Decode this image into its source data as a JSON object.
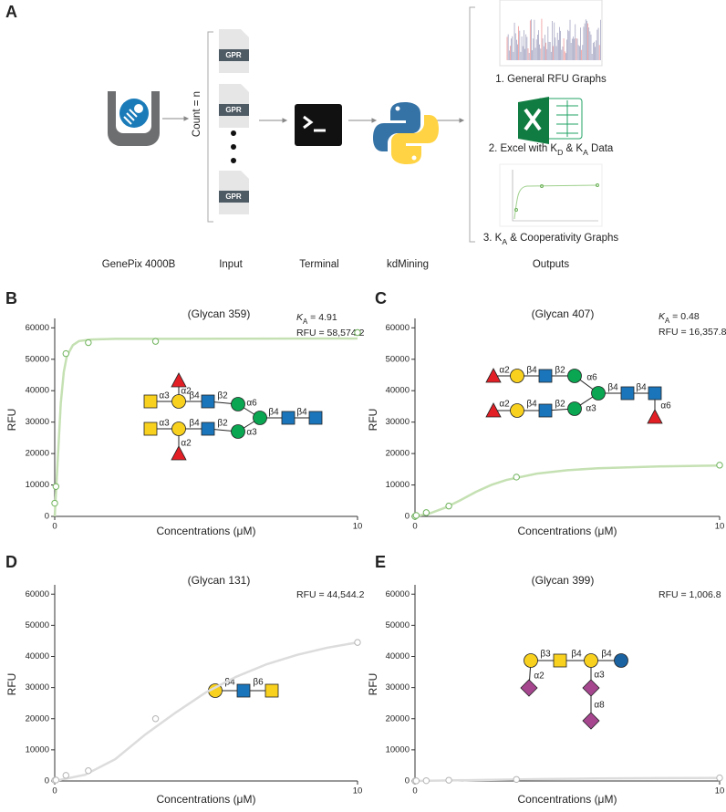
{
  "figure": {
    "panel_label": "A",
    "steps": [
      "GenePix 4000B",
      "Input",
      "Terminal",
      "kdMining",
      "Outputs"
    ],
    "count_label": "Count = n",
    "file_tags": [
      "GPR",
      "GPR",
      "GPR"
    ],
    "outputs": [
      [
        "1. General RFU Graphs"
      ],
      [
        "2. Excel with K",
        "D",
        " & K",
        "A",
        " Data"
      ],
      [
        "3. K",
        "A",
        " & Cooperativity Graphs"
      ]
    ]
  },
  "chart_data": [
    {
      "type": "scatter",
      "panel_label": "B",
      "title": "(Glycan 359)",
      "xlabel": "Concentrations (μM)",
      "ylabel": "RFU",
      "annotations": [
        [
          "K",
          "A",
          " = 4.91"
        ],
        [
          "RFU = 58,574.2"
        ]
      ],
      "xlim": [
        0,
        10
      ],
      "xticks": [
        0,
        10
      ],
      "ylim": [
        0,
        63000
      ],
      "yticks": [
        0,
        10000,
        20000,
        30000,
        40000,
        50000,
        60000
      ],
      "color": "#6fb35c",
      "fit_color": "#c5e1b3",
      "points": {
        "x": [
          0,
          0.04,
          0.37,
          1.11,
          3.33,
          10
        ],
        "values": [
          4200,
          9500,
          51800,
          55300,
          55700,
          58500
        ]
      },
      "fit": {
        "x": [
          0,
          0.05,
          0.1,
          0.15,
          0.2,
          0.3,
          0.4,
          0.6,
          0.8,
          1.2,
          2,
          4,
          10
        ],
        "values": [
          0,
          9000,
          18000,
          27000,
          36000,
          46000,
          51000,
          54500,
          55800,
          56300,
          56500,
          56500,
          56600
        ]
      },
      "glycan_labels": [
        "α3",
        "α2",
        "β4",
        "β2",
        "α6",
        "α3",
        "α2",
        "β4",
        "β2",
        "α3",
        "β4",
        "β4"
      ]
    },
    {
      "type": "scatter",
      "panel_label": "C",
      "title": "(Glycan 407)",
      "xlabel": "Concentrations (μM)",
      "ylabel": "RFU",
      "annotations": [
        [
          "K",
          "A",
          " = 0.48"
        ],
        [
          "RFU = 16,357.8"
        ]
      ],
      "xlim": [
        0,
        10
      ],
      "xticks": [
        0,
        10
      ],
      "ylim": [
        0,
        63000
      ],
      "yticks": [
        0,
        10000,
        20000,
        30000,
        40000,
        50000,
        60000
      ],
      "color": "#6fb35c",
      "fit_color": "#c5e1b3",
      "points": {
        "x": [
          0,
          0.04,
          0.37,
          1.11,
          3.33,
          10
        ],
        "values": [
          0,
          300,
          1200,
          3300,
          12500,
          16300
        ]
      },
      "fit": {
        "x": [
          0,
          0.5,
          1,
          1.5,
          2,
          2.5,
          3,
          4,
          5,
          6,
          8,
          10
        ],
        "values": [
          0,
          1000,
          2800,
          5200,
          7800,
          10000,
          11600,
          13600,
          14700,
          15300,
          15900,
          16200
        ]
      },
      "glycan_labels": [
        "α2",
        "β4",
        "β2",
        "α6",
        "α2",
        "β4",
        "β2",
        "α3",
        "β4",
        "β4",
        "α6"
      ]
    },
    {
      "type": "scatter",
      "panel_label": "D",
      "title": "(Glycan 131)",
      "xlabel": "Concentrations (μM)",
      "ylabel": "RFU",
      "annotations": [
        [
          "RFU = 44,544.2"
        ]
      ],
      "xlim": [
        0,
        10
      ],
      "xticks": [
        0,
        10
      ],
      "ylim": [
        0,
        63000
      ],
      "yticks": [
        0,
        10000,
        20000,
        30000,
        40000,
        50000,
        60000
      ],
      "color": "#b5b5b5",
      "fit_color": "#dcdcdc",
      "points": {
        "x": [
          0,
          0.04,
          0.37,
          1.11,
          3.33,
          10
        ],
        "values": [
          200,
          300,
          1800,
          3300,
          20000,
          44500
        ]
      },
      "fit": {
        "x": [
          0,
          1,
          2,
          3,
          4,
          5,
          6,
          7,
          8,
          9,
          10
        ],
        "values": [
          0,
          2000,
          7000,
          15000,
          22000,
          28500,
          33500,
          37500,
          40500,
          42800,
          44500
        ]
      },
      "glycan_labels": [
        "β4",
        "β6"
      ]
    },
    {
      "type": "scatter",
      "panel_label": "E",
      "title": "(Glycan 399)",
      "xlabel": "Concentrations (μM)",
      "ylabel": "RFU",
      "annotations": [
        [
          "RFU = 1,006.8"
        ]
      ],
      "xlim": [
        0,
        10
      ],
      "xticks": [
        0,
        10
      ],
      "ylim": [
        0,
        63000
      ],
      "yticks": [
        0,
        10000,
        20000,
        30000,
        40000,
        50000,
        60000
      ],
      "color": "#b5b5b5",
      "fit_color": "#dcdcdc",
      "points": {
        "x": [
          0,
          0.04,
          0.37,
          1.11,
          3.33,
          10
        ],
        "values": [
          0,
          50,
          100,
          250,
          500,
          1000
        ]
      },
      "fit": {
        "x": [
          0,
          2,
          4,
          6,
          8,
          10
        ],
        "values": [
          0,
          300,
          600,
          800,
          900,
          1000
        ]
      },
      "glycan_labels": [
        "β3",
        "β4",
        "β4",
        "α2",
        "α3",
        "α8"
      ]
    }
  ]
}
